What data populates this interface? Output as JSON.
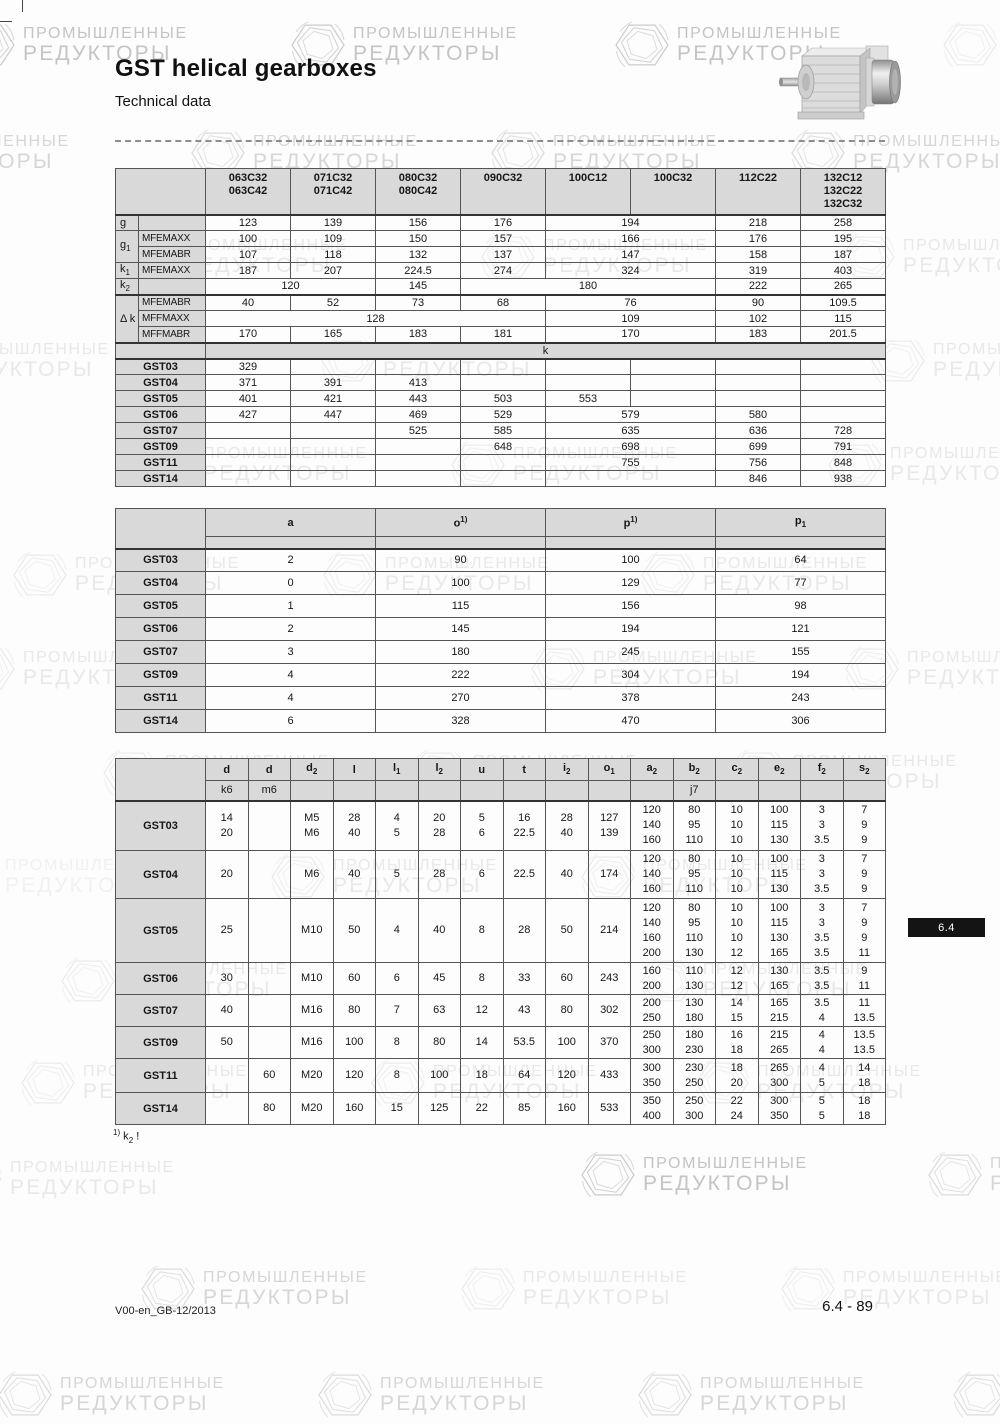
{
  "page": {
    "title": "GST helical gearboxes",
    "subtitle": "Technical data",
    "footnote": "^1) k_2 !",
    "footer_left": "V00-en_GB-12/2013",
    "footer_right": "6.4 - 89",
    "tab_label": "6.4"
  },
  "watermark": {
    "line1": "ПРОМЫШЛЕННЫЕ",
    "line2": "РЕДУКТОРЫ"
  },
  "icons": {
    "watermark_logo": "hexagon-swirl-icon",
    "product_image": "helical-geared-motor-photo"
  },
  "colors": {
    "header_gray": "#d9d9d9",
    "tab_black": "#141414",
    "border": "#555555"
  },
  "table1": {
    "col_headers": [
      "063C32\n063C42",
      "071C32\n071C42",
      "080C32\n080C42",
      "090C32",
      "100C12",
      "100C32",
      "112C22",
      "132C12\n132C22\n132C32"
    ],
    "spec_rows": [
      {
        "a": "g",
        "a_span": 1,
        "b": "",
        "cells": [
          [
            "123",
            1
          ],
          [
            "139",
            1
          ],
          [
            "156",
            1
          ],
          [
            "176",
            1
          ],
          [
            "194",
            2
          ],
          [
            "218",
            1
          ],
          [
            "258",
            1
          ]
        ]
      },
      {
        "a": "g_1",
        "a_span": 2,
        "b": "MFEMAXX",
        "cells": [
          [
            "100",
            1
          ],
          [
            "109",
            1
          ],
          [
            "150",
            1
          ],
          [
            "157",
            1
          ],
          [
            "166",
            2
          ],
          [
            "176",
            1
          ],
          [
            "195",
            1
          ]
        ]
      },
      {
        "b": "MFEMABR",
        "cells": [
          [
            "107",
            1
          ],
          [
            "118",
            1
          ],
          [
            "132",
            1
          ],
          [
            "137",
            1
          ],
          [
            "147",
            2
          ],
          [
            "158",
            1
          ],
          [
            "187",
            1
          ]
        ]
      },
      {
        "a": "k_1",
        "a_span": 1,
        "b": "MFEMAXX",
        "cells": [
          [
            "187",
            1
          ],
          [
            "207",
            1
          ],
          [
            "224.5",
            1
          ],
          [
            "274",
            1
          ],
          [
            "324",
            2
          ],
          [
            "319",
            1
          ],
          [
            "403",
            1
          ]
        ]
      },
      {
        "a": "k_2",
        "a_span": 1,
        "b": "",
        "cells": [
          [
            "120",
            2
          ],
          [
            "145",
            1
          ],
          [
            "180",
            3
          ],
          [
            "222",
            1
          ],
          [
            "265",
            1
          ]
        ]
      },
      {
        "a": "Δ k",
        "a_span": 3,
        "b": "MFEMABR",
        "cells": [
          [
            "40",
            1
          ],
          [
            "52",
            1
          ],
          [
            "73",
            1
          ],
          [
            "68",
            1
          ],
          [
            "76",
            2
          ],
          [
            "90",
            1
          ],
          [
            "109.5",
            1
          ]
        ]
      },
      {
        "b": "MFFMAXX",
        "cells": [
          [
            "128",
            4
          ],
          [
            "109",
            2
          ],
          [
            "102",
            1
          ],
          [
            "115",
            1
          ]
        ]
      },
      {
        "b": "MFFMABR",
        "cells": [
          [
            "170",
            1
          ],
          [
            "165",
            1
          ],
          [
            "183",
            1
          ],
          [
            "181",
            1
          ],
          [
            "170",
            2
          ],
          [
            "183",
            1
          ],
          [
            "201.5",
            1
          ]
        ]
      }
    ],
    "band_label": "k",
    "gst_rows": [
      {
        "label": "GST03",
        "cells": [
          [
            "329",
            1
          ],
          [
            "",
            1
          ],
          [
            "",
            1
          ],
          [
            "",
            1
          ],
          [
            "",
            1
          ],
          [
            "",
            1
          ],
          [
            "",
            1
          ],
          [
            "",
            1
          ]
        ]
      },
      {
        "label": "GST04",
        "cells": [
          [
            "371",
            1
          ],
          [
            "391",
            1
          ],
          [
            "413",
            1
          ],
          [
            "",
            1
          ],
          [
            "",
            1
          ],
          [
            "",
            1
          ],
          [
            "",
            1
          ],
          [
            "",
            1
          ]
        ]
      },
      {
        "label": "GST05",
        "cells": [
          [
            "401",
            1
          ],
          [
            "421",
            1
          ],
          [
            "443",
            1
          ],
          [
            "503",
            1
          ],
          [
            "553",
            1
          ],
          [
            "",
            1
          ],
          [
            "",
            1
          ],
          [
            "",
            1
          ]
        ]
      },
      {
        "label": "GST06",
        "cells": [
          [
            "427",
            1
          ],
          [
            "447",
            1
          ],
          [
            "469",
            1
          ],
          [
            "529",
            1
          ],
          [
            "579",
            2
          ],
          [
            "580",
            1
          ],
          [
            "",
            1
          ]
        ]
      },
      {
        "label": "GST07",
        "cells": [
          [
            "",
            1
          ],
          [
            "",
            1
          ],
          [
            "525",
            1
          ],
          [
            "585",
            1
          ],
          [
            "635",
            2
          ],
          [
            "636",
            1
          ],
          [
            "728",
            1
          ]
        ]
      },
      {
        "label": "GST09",
        "cells": [
          [
            "",
            1
          ],
          [
            "",
            1
          ],
          [
            "",
            1
          ],
          [
            "648",
            1
          ],
          [
            "698",
            2
          ],
          [
            "699",
            1
          ],
          [
            "791",
            1
          ]
        ]
      },
      {
        "label": "GST11",
        "cells": [
          [
            "",
            1
          ],
          [
            "",
            1
          ],
          [
            "",
            1
          ],
          [
            "",
            1
          ],
          [
            "755",
            2
          ],
          [
            "756",
            1
          ],
          [
            "848",
            1
          ]
        ]
      },
      {
        "label": "GST14",
        "cells": [
          [
            "",
            1
          ],
          [
            "",
            1
          ],
          [
            "",
            1
          ],
          [
            "",
            1
          ],
          [
            "",
            2
          ],
          [
            "846",
            1
          ],
          [
            "938",
            1
          ]
        ]
      }
    ]
  },
  "table2": {
    "col_headers": [
      "a",
      "o^1)",
      "p^1)",
      "p_1"
    ],
    "rows": [
      {
        "label": "GST03",
        "values": [
          "2",
          "90",
          "100",
          "64"
        ]
      },
      {
        "label": "GST04",
        "values": [
          "0",
          "100",
          "129",
          "77"
        ]
      },
      {
        "label": "GST05",
        "values": [
          "1",
          "115",
          "156",
          "98"
        ]
      },
      {
        "label": "GST06",
        "values": [
          "2",
          "145",
          "194",
          "121"
        ]
      },
      {
        "label": "GST07",
        "values": [
          "3",
          "180",
          "245",
          "155"
        ]
      },
      {
        "label": "GST09",
        "values": [
          "4",
          "222",
          "304",
          "194"
        ]
      },
      {
        "label": "GST11",
        "values": [
          "4",
          "270",
          "378",
          "243"
        ]
      },
      {
        "label": "GST14",
        "values": [
          "6",
          "328",
          "470",
          "306"
        ]
      }
    ]
  },
  "table3": {
    "col_headers": [
      "d",
      "d",
      "d_2",
      "l",
      "l_1",
      "l_2",
      "u",
      "t",
      "i_2",
      "o_1",
      "a_2",
      "b_2",
      "c_2",
      "e_2",
      "f_2",
      "s_2"
    ],
    "sub_headers": [
      "k6",
      "m6",
      "",
      "",
      "",
      "",
      "",
      "",
      "",
      "",
      "",
      "j7",
      "",
      "",
      "",
      ""
    ],
    "rows": [
      {
        "label": "GST03",
        "cells": [
          [
            "14",
            "20"
          ],
          [
            ""
          ],
          [
            "M5",
            "M6"
          ],
          [
            "28",
            "40"
          ],
          [
            "4",
            "5"
          ],
          [
            "20",
            "28"
          ],
          [
            "5",
            "6"
          ],
          [
            "16",
            "22.5"
          ],
          [
            "28",
            "40"
          ],
          [
            "127",
            "139"
          ],
          [
            "120",
            "140",
            "160"
          ],
          [
            "80",
            "95",
            "110"
          ],
          [
            "10",
            "10",
            "10"
          ],
          [
            "100",
            "115",
            "130"
          ],
          [
            "3",
            "3",
            "3.5"
          ],
          [
            "7",
            "9",
            "9"
          ]
        ]
      },
      {
        "label": "GST04",
        "cells": [
          [
            "20"
          ],
          [
            ""
          ],
          [
            "M6"
          ],
          [
            "40"
          ],
          [
            "5"
          ],
          [
            "28"
          ],
          [
            "6"
          ],
          [
            "22.5"
          ],
          [
            "40"
          ],
          [
            "174"
          ],
          [
            "120",
            "140",
            "160"
          ],
          [
            "80",
            "95",
            "110"
          ],
          [
            "10",
            "10",
            "10"
          ],
          [
            "100",
            "115",
            "130"
          ],
          [
            "3",
            "3",
            "3.5"
          ],
          [
            "7",
            "9",
            "9"
          ]
        ]
      },
      {
        "label": "GST05",
        "cells": [
          [
            "25"
          ],
          [
            ""
          ],
          [
            "M10"
          ],
          [
            "50"
          ],
          [
            "4"
          ],
          [
            "40"
          ],
          [
            "8"
          ],
          [
            "28"
          ],
          [
            "50"
          ],
          [
            "214"
          ],
          [
            "120",
            "140",
            "160",
            "200"
          ],
          [
            "80",
            "95",
            "110",
            "130"
          ],
          [
            "10",
            "10",
            "10",
            "12"
          ],
          [
            "100",
            "115",
            "130",
            "165"
          ],
          [
            "3",
            "3",
            "3.5",
            "3.5"
          ],
          [
            "7",
            "9",
            "9",
            "11"
          ]
        ]
      },
      {
        "label": "GST06",
        "cells": [
          [
            "30"
          ],
          [
            ""
          ],
          [
            "M10"
          ],
          [
            "60"
          ],
          [
            "6"
          ],
          [
            "45"
          ],
          [
            "8"
          ],
          [
            "33"
          ],
          [
            "60"
          ],
          [
            "243"
          ],
          [
            "160",
            "200"
          ],
          [
            "110",
            "130"
          ],
          [
            "12",
            "12"
          ],
          [
            "130",
            "165"
          ],
          [
            "3.5",
            "3.5"
          ],
          [
            "9",
            "11"
          ]
        ]
      },
      {
        "label": "GST07",
        "cells": [
          [
            "40"
          ],
          [
            ""
          ],
          [
            "M16"
          ],
          [
            "80"
          ],
          [
            "7"
          ],
          [
            "63"
          ],
          [
            "12"
          ],
          [
            "43"
          ],
          [
            "80"
          ],
          [
            "302"
          ],
          [
            "200",
            "250"
          ],
          [
            "130",
            "180"
          ],
          [
            "14",
            "15"
          ],
          [
            "165",
            "215"
          ],
          [
            "3.5",
            "4"
          ],
          [
            "11",
            "13.5"
          ]
        ]
      },
      {
        "label": "GST09",
        "cells": [
          [
            "50"
          ],
          [
            ""
          ],
          [
            "M16"
          ],
          [
            "100"
          ],
          [
            "8"
          ],
          [
            "80"
          ],
          [
            "14"
          ],
          [
            "53.5"
          ],
          [
            "100"
          ],
          [
            "370"
          ],
          [
            "250",
            "300"
          ],
          [
            "180",
            "230"
          ],
          [
            "16",
            "18"
          ],
          [
            "215",
            "265"
          ],
          [
            "4",
            "4"
          ],
          [
            "13.5",
            "13.5"
          ]
        ]
      },
      {
        "label": "GST11",
        "cells": [
          [
            ""
          ],
          [
            "60"
          ],
          [
            "M20"
          ],
          [
            "120"
          ],
          [
            "8"
          ],
          [
            "100"
          ],
          [
            "18"
          ],
          [
            "64"
          ],
          [
            "120"
          ],
          [
            "433"
          ],
          [
            "300",
            "350"
          ],
          [
            "230",
            "250"
          ],
          [
            "18",
            "20"
          ],
          [
            "265",
            "300"
          ],
          [
            "4",
            "5"
          ],
          [
            "14",
            "18"
          ]
        ]
      },
      {
        "label": "GST14",
        "cells": [
          [
            ""
          ],
          [
            "80"
          ],
          [
            "M20"
          ],
          [
            "160"
          ],
          [
            "15"
          ],
          [
            "125"
          ],
          [
            "22"
          ],
          [
            "85"
          ],
          [
            "160"
          ],
          [
            "533"
          ],
          [
            "350",
            "400"
          ],
          [
            "250",
            "300"
          ],
          [
            "22",
            "24"
          ],
          [
            "300",
            "350"
          ],
          [
            "5",
            "5"
          ],
          [
            "18",
            "18"
          ]
        ]
      }
    ]
  }
}
